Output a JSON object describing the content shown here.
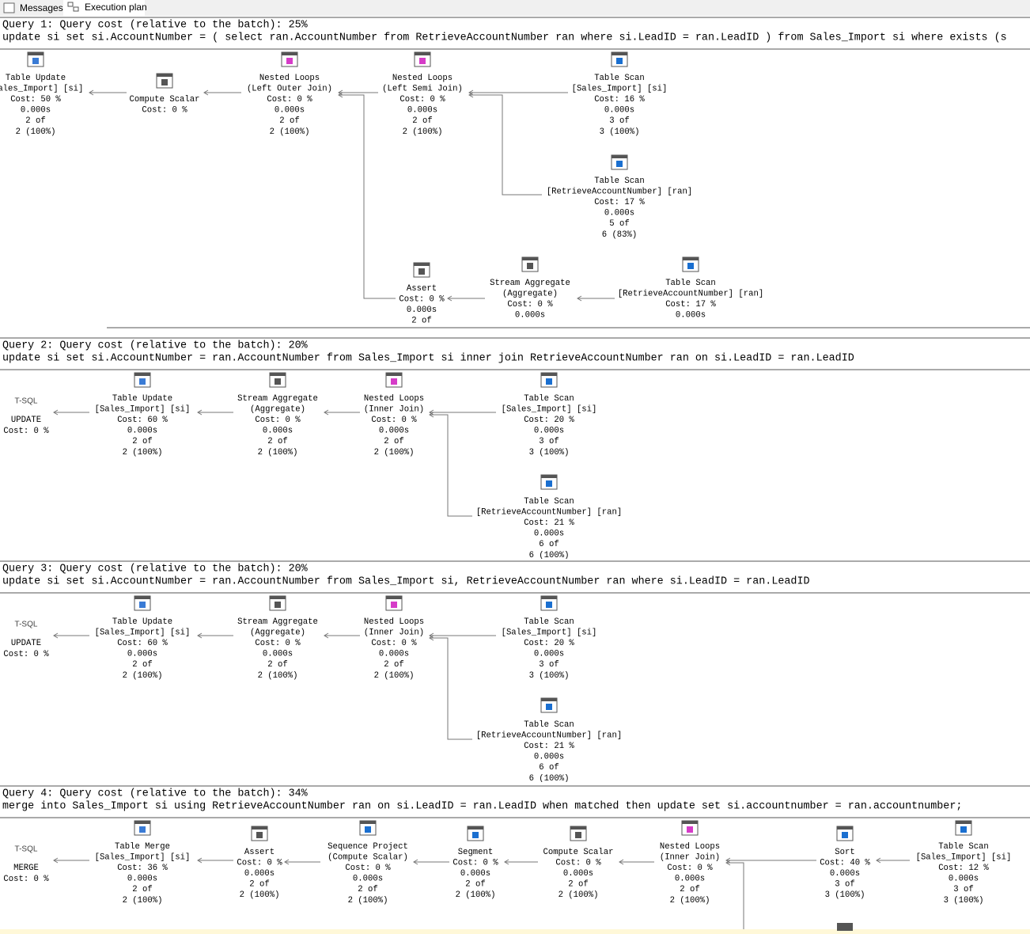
{
  "tabs": [
    "Messages",
    "Execution plan"
  ],
  "queries": [
    {
      "header": "Query 1: Query cost (relative to the batch): 25%",
      "sql": "update si set si.AccountNumber = ( select ran.AccountNumber from RetrieveAccountNumber ran where si.LeadID = ran.LeadID ) from Sales_Import si where exists (s",
      "nodes": [
        {
          "lines": [
            "Table Update",
            "[Sales_Import] [si]",
            "Cost: 50 %",
            "0.000s",
            "2 of",
            "2 (100%)"
          ]
        },
        {
          "lines": [
            "Compute Scalar",
            "Cost: 0 %"
          ]
        },
        {
          "lines": [
            "Nested Loops",
            "(Left Outer Join)",
            "Cost: 0 %",
            "0.000s",
            "2 of",
            "2 (100%)"
          ]
        },
        {
          "lines": [
            "Nested Loops",
            "(Left Semi Join)",
            "Cost: 0 %",
            "0.000s",
            "2 of",
            "2 (100%)"
          ]
        },
        {
          "lines": [
            "Table Scan",
            "[Sales_Import] [si]",
            "Cost: 16 %",
            "0.000s",
            "3 of",
            "3 (100%)"
          ]
        },
        {
          "lines": [
            "Table Scan",
            "[RetrieveAccountNumber] [ran]",
            "Cost: 17 %",
            "0.000s",
            "5 of",
            "6 (83%)"
          ]
        },
        {
          "lines": [
            "Assert",
            "Cost: 0 %",
            "0.000s",
            "2 of"
          ]
        },
        {
          "lines": [
            "Stream Aggregate",
            "(Aggregate)",
            "Cost: 0 %",
            "0.000s"
          ]
        },
        {
          "lines": [
            "Table Scan",
            "[RetrieveAccountNumber] [ran]",
            "Cost: 17 %",
            "0.000s"
          ]
        }
      ]
    },
    {
      "header": "Query 2: Query cost (relative to the batch): 20%",
      "sql": "update si set si.AccountNumber = ran.AccountNumber from Sales_Import si inner join RetrieveAccountNumber ran on si.LeadID = ran.LeadID",
      "nodes": [
        {
          "lines": [
            "T-SQL",
            "UPDATE",
            "Cost: 0 %"
          ]
        },
        {
          "lines": [
            "Table Update",
            "[Sales_Import] [si]",
            "Cost: 60 %",
            "0.000s",
            "2 of",
            "2 (100%)"
          ]
        },
        {
          "lines": [
            "Stream Aggregate",
            "(Aggregate)",
            "Cost: 0 %",
            "0.000s",
            "2 of",
            "2 (100%)"
          ]
        },
        {
          "lines": [
            "Nested Loops",
            "(Inner Join)",
            "Cost: 0 %",
            "0.000s",
            "2 of",
            "2 (100%)"
          ]
        },
        {
          "lines": [
            "Table Scan",
            "[Sales_Import] [si]",
            "Cost: 20 %",
            "0.000s",
            "3 of",
            "3 (100%)"
          ]
        },
        {
          "lines": [
            "Table Scan",
            "[RetrieveAccountNumber] [ran]",
            "Cost: 21 %",
            "0.000s",
            "6 of",
            "6 (100%)"
          ]
        }
      ]
    },
    {
      "header": "Query 3: Query cost (relative to the batch): 20%",
      "sql": "update si set si.AccountNumber = ran.AccountNumber from Sales_Import si, RetrieveAccountNumber ran where si.LeadID = ran.LeadID",
      "nodes": [
        {
          "lines": [
            "T-SQL",
            "UPDATE",
            "Cost: 0 %"
          ]
        },
        {
          "lines": [
            "Table Update",
            "[Sales_Import] [si]",
            "Cost: 60 %",
            "0.000s",
            "2 of",
            "2 (100%)"
          ]
        },
        {
          "lines": [
            "Stream Aggregate",
            "(Aggregate)",
            "Cost: 0 %",
            "0.000s",
            "2 of",
            "2 (100%)"
          ]
        },
        {
          "lines": [
            "Nested Loops",
            "(Inner Join)",
            "Cost: 0 %",
            "0.000s",
            "2 of",
            "2 (100%)"
          ]
        },
        {
          "lines": [
            "Table Scan",
            "[Sales_Import] [si]",
            "Cost: 20 %",
            "0.000s",
            "3 of",
            "3 (100%)"
          ]
        },
        {
          "lines": [
            "Table Scan",
            "[RetrieveAccountNumber] [ran]",
            "Cost: 21 %",
            "0.000s",
            "6 of",
            "6 (100%)"
          ]
        }
      ]
    },
    {
      "header": "Query 4: Query cost (relative to the batch): 34%",
      "sql": "merge into Sales_Import si using RetrieveAccountNumber ran on si.LeadID = ran.LeadID when matched then update set si.accountnumber = ran.accountnumber;",
      "nodes": [
        {
          "lines": [
            "T-SQL",
            "MERGE",
            "Cost: 0 %"
          ]
        },
        {
          "lines": [
            "Table Merge",
            "[Sales_Import] [si]",
            "Cost: 36 %",
            "0.000s",
            "2 of",
            "2 (100%)"
          ]
        },
        {
          "lines": [
            "Assert",
            "Cost: 0 %",
            "0.000s",
            "2 of",
            "2 (100%)"
          ]
        },
        {
          "lines": [
            "Sequence Project",
            "(Compute Scalar)",
            "Cost: 0 %",
            "0.000s",
            "2 of",
            "2 (100%)"
          ]
        },
        {
          "lines": [
            "Segment",
            "Cost: 0 %",
            "0.000s",
            "2 of",
            "2 (100%)"
          ]
        },
        {
          "lines": [
            "Compute Scalar",
            "Cost: 0 %",
            "0.000s",
            "2 of",
            "2 (100%)"
          ]
        },
        {
          "lines": [
            "Nested Loops",
            "(Inner Join)",
            "Cost: 0 %",
            "0.000s",
            "2 of",
            "2 (100%)"
          ]
        },
        {
          "lines": [
            "Sort",
            "Cost: 40 %",
            "0.000s",
            "3 of",
            "3 (100%)"
          ]
        },
        {
          "lines": [
            "Table Scan",
            "[Sales_Import] [si]",
            "Cost: 12 %",
            "0.000s",
            "3 of",
            "3 (100%)"
          ]
        }
      ]
    }
  ]
}
